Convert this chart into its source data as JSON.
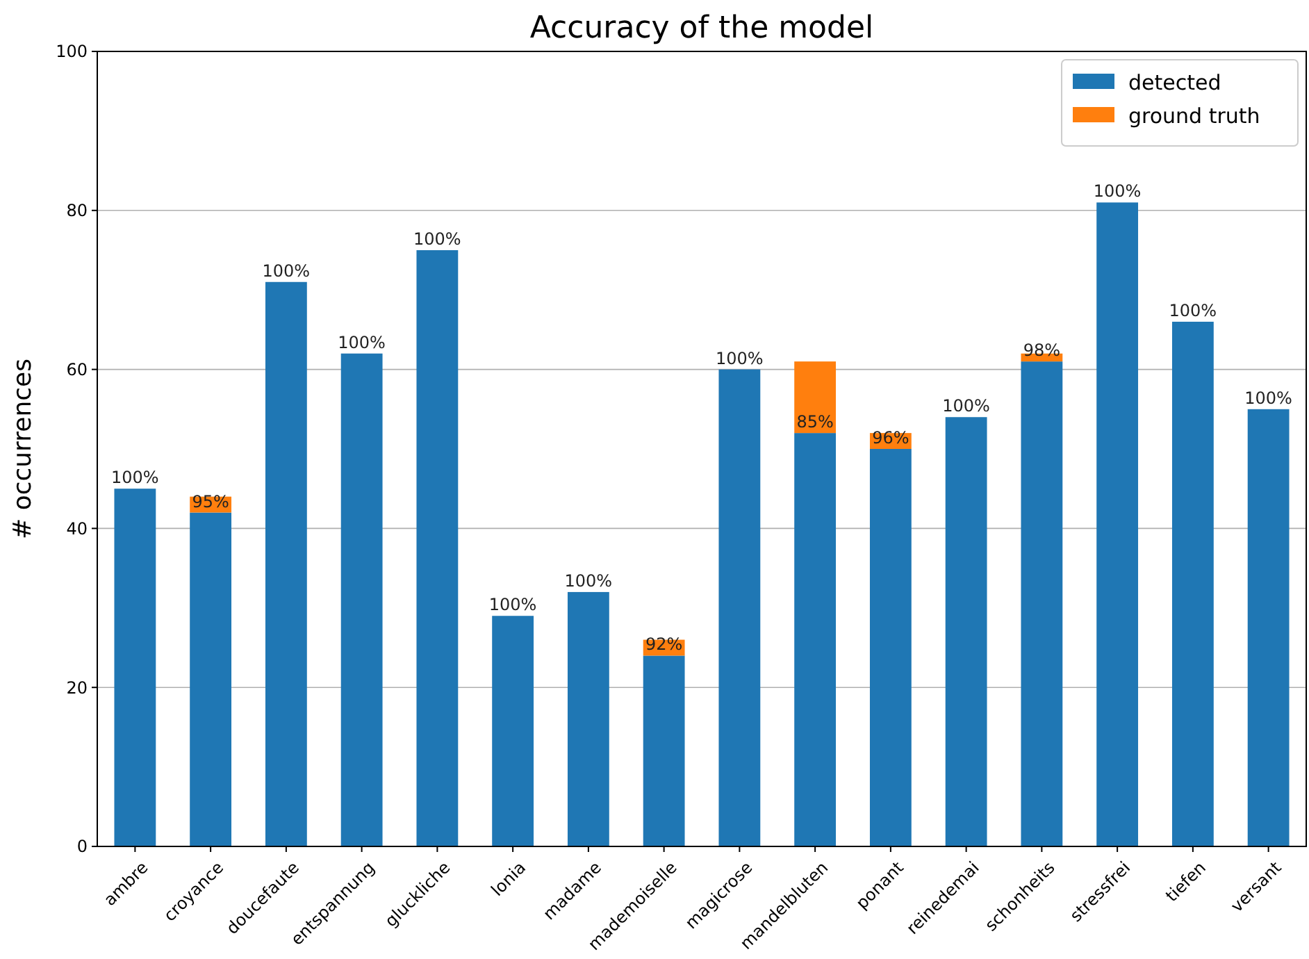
{
  "chart_data": {
    "type": "bar",
    "title": "Accuracy of the model",
    "ylabel": "# occurrences",
    "stacked": true,
    "categories": [
      "ambre",
      "croyance",
      "doucefaute",
      "entspannung",
      "gluckliche",
      "lonia",
      "madame",
      "mademoiselle",
      "magicrose",
      "mandelbluten",
      "ponant",
      "reinedemai",
      "schonheits",
      "stressfrei",
      "tiefen",
      "versant"
    ],
    "series": [
      {
        "name": "detected",
        "color": "#1f77b4",
        "values": [
          45,
          42,
          71,
          62,
          75,
          29,
          32,
          24,
          60,
          52,
          50,
          54,
          61,
          81,
          66,
          55
        ]
      },
      {
        "name": "ground truth",
        "color": "#ff7f0e",
        "values": [
          0,
          2,
          0,
          0,
          0,
          0,
          0,
          2,
          0,
          9,
          2,
          0,
          1,
          0,
          0,
          0
        ]
      }
    ],
    "ylim": [
      0,
      100
    ],
    "yticks": [
      0,
      20,
      40,
      60,
      80,
      100
    ],
    "grid": "y",
    "legend": "top right",
    "annotations": [
      {
        "text": "100%",
        "x": "ambre",
        "y": 45
      },
      {
        "text": "95%",
        "x": "croyance",
        "y": 42
      },
      {
        "text": "100%",
        "x": "doucefaute",
        "y": 71
      },
      {
        "text": "100%",
        "x": "entspannung",
        "y": 62
      },
      {
        "text": "100%",
        "x": "gluckliche",
        "y": 75
      },
      {
        "text": "100%",
        "x": "lonia",
        "y": 29
      },
      {
        "text": "100%",
        "x": "madame",
        "y": 32
      },
      {
        "text": "92%",
        "x": "mademoiselle",
        "y": 24
      },
      {
        "text": "100%",
        "x": "magicrose",
        "y": 60
      },
      {
        "text": "85%",
        "x": "mandelbluten",
        "y": 52
      },
      {
        "text": "96%",
        "x": "ponant",
        "y": 50
      },
      {
        "text": "100%",
        "x": "reinedemai",
        "y": 54
      },
      {
        "text": "98%",
        "x": "schonheits",
        "y": 61
      },
      {
        "text": "100%",
        "x": "stressfrei",
        "y": 81
      },
      {
        "text": "100%",
        "x": "tiefen",
        "y": 66
      },
      {
        "text": "100%",
        "x": "versant",
        "y": 55
      }
    ]
  }
}
